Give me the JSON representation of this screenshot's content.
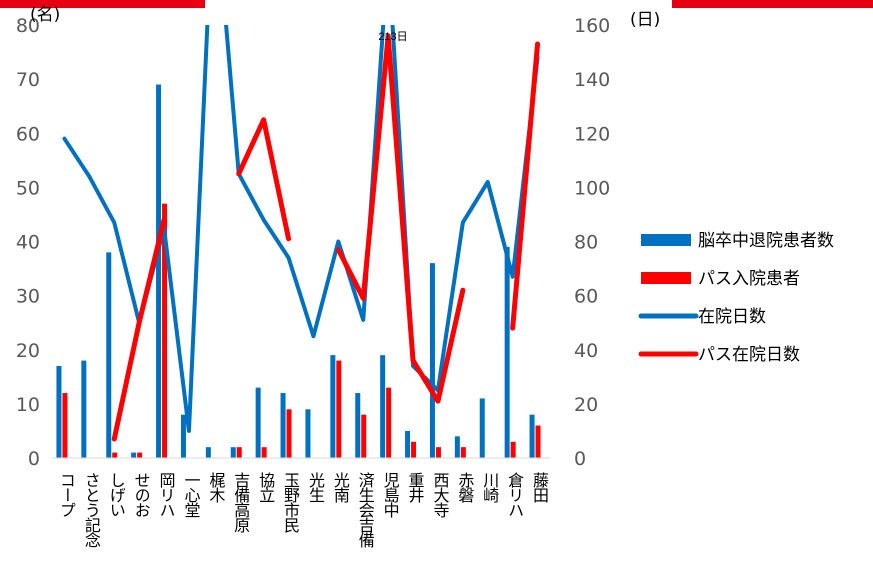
{
  "chart_data": {
    "type": "bar+line",
    "title": "",
    "left_axis": {
      "unit": "(名)",
      "ylim": [
        0,
        80
      ],
      "ticks": [
        0,
        10,
        20,
        30,
        40,
        50,
        60,
        70,
        80
      ]
    },
    "right_axis": {
      "unit": "(日)",
      "ylim": [
        0,
        160
      ],
      "ticks": [
        0,
        20,
        40,
        60,
        80,
        100,
        120,
        140,
        160
      ]
    },
    "annotation": "213日",
    "legend_position": "right",
    "categories": [
      "コープ",
      "さとう記念",
      "しげい",
      "せのお",
      "岡リハ",
      "一心堂",
      "梶木",
      "吉備高原",
      "協立",
      "玉野市民",
      "光生",
      "光南",
      "済生会吉備",
      "児島中",
      "重井",
      "西大寺",
      "赤磐",
      "川崎",
      "倉リハ",
      "藤田"
    ],
    "series": [
      {
        "name": "脳卒中退院患者数",
        "type": "bar",
        "axis": "left",
        "color": "#0070C0",
        "values": [
          17,
          18,
          38,
          1,
          69,
          8,
          2,
          2,
          13,
          12,
          9,
          19,
          12,
          19,
          5,
          36,
          4,
          11,
          39,
          8
        ]
      },
      {
        "name": "パス入院患者",
        "type": "bar",
        "axis": "left",
        "color": "#FF0000",
        "values": [
          12,
          0,
          1,
          1,
          47,
          0,
          0,
          2,
          2,
          9,
          0,
          18,
          8,
          13,
          3,
          2,
          2,
          0,
          3,
          6
        ]
      },
      {
        "name": "在院日数",
        "type": "line",
        "axis": "right",
        "color": "#0070C0",
        "values": [
          118,
          104,
          87,
          50,
          85,
          10,
          213,
          105,
          88,
          74,
          45,
          80,
          51,
          187,
          34,
          25,
          87,
          102,
          67,
          148
        ]
      },
      {
        "name": "パス在院日数",
        "type": "line",
        "axis": "right",
        "color": "#FF0000",
        "values": [
          null,
          null,
          7,
          50,
          88,
          null,
          null,
          105,
          125,
          81,
          null,
          77,
          59,
          156,
          36,
          21,
          62,
          null,
          48,
          153
        ]
      }
    ]
  }
}
